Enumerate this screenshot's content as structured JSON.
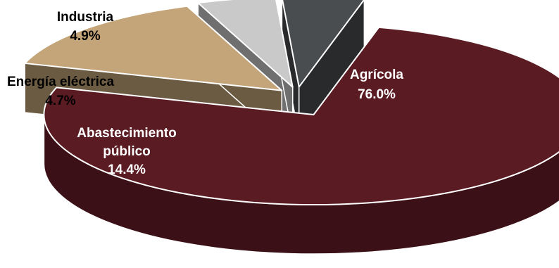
{
  "chart_data": {
    "type": "pie",
    "title": "",
    "slices": [
      {
        "name": "Agrícola",
        "value": 76.0,
        "value_label": "76.0%",
        "color": "#5a1b22"
      },
      {
        "name": "Abastecimiento público",
        "name_lines": [
          "Abastecimiento",
          "público"
        ],
        "value": 14.4,
        "value_label": "14.4%",
        "color": "#c4a57a"
      },
      {
        "name": "Energía eléctrica",
        "value": 4.7,
        "value_label": "4.7%",
        "color": "#c9c9c9"
      },
      {
        "name": "Industria",
        "value": 4.9,
        "value_label": "4.9%",
        "color": "#4a4d50"
      }
    ],
    "style": "3d-exploded",
    "legend": "none"
  }
}
